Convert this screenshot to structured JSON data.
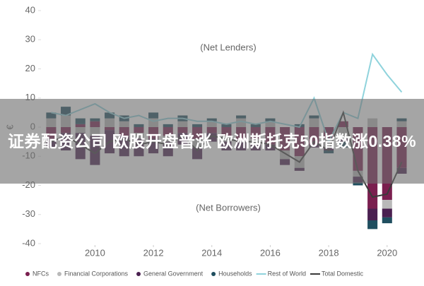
{
  "chart_data": {
    "type": "stacked_bar_line",
    "ylabel": "€",
    "annotations": [
      "(Net Lenders)",
      "(Net Borrowers)"
    ],
    "x": [
      2008.5,
      2009,
      2009.5,
      2010,
      2010.5,
      2011,
      2011.5,
      2012,
      2012.5,
      2013,
      2013.5,
      2014,
      2014.5,
      2015,
      2015.5,
      2016,
      2016.5,
      2017,
      2017.5,
      2018,
      2018.5,
      2019,
      2019.5,
      2020,
      2020.5
    ],
    "xlim": [
      2008.2,
      2020.9
    ],
    "xticks": [
      2010,
      2012,
      2014,
      2016,
      2018,
      2020
    ],
    "ylim": [
      -40,
      40
    ],
    "yticks": [
      -40,
      -30,
      -20,
      -10,
      0,
      10,
      20,
      30,
      40
    ],
    "series": [
      {
        "name": "NFCs",
        "kind": "bar",
        "color": "#7a1f4f",
        "values": [
          -4,
          -2,
          1,
          2,
          -1,
          -3,
          -2,
          -4,
          -3,
          -2,
          -4,
          -2,
          -3,
          -5,
          -4,
          -6,
          -8,
          -10,
          -6,
          -4,
          2,
          -15,
          -28,
          -25,
          -14
        ]
      },
      {
        "name": "Financial Corporations",
        "kind": "bar",
        "color": "#b9b9b9",
        "values": [
          3,
          4,
          -2,
          -3,
          3,
          2,
          -2,
          3,
          -2,
          2,
          -3,
          2,
          -2,
          3,
          -2,
          2,
          -3,
          -4,
          3,
          -3,
          -4,
          -2,
          3,
          -3,
          2
        ]
      },
      {
        "name": "General Government",
        "kind": "bar",
        "color": "#4a2050",
        "values": [
          -3,
          -6,
          -9,
          -10,
          -8,
          -7,
          -6,
          -5,
          -5,
          -4,
          -4,
          -3,
          -3,
          -3,
          -2,
          -2,
          -2,
          -1,
          -1,
          -1,
          -1,
          -2,
          -4,
          -3,
          -2
        ]
      },
      {
        "name": "Households",
        "kind": "bar",
        "color": "#1f4e5f",
        "values": [
          2,
          3,
          2,
          1,
          2,
          2,
          1,
          2,
          1,
          2,
          1,
          1,
          1,
          1,
          1,
          1,
          0,
          1,
          1,
          -1,
          -2,
          -1,
          -3,
          -2,
          1
        ]
      },
      {
        "name": "Rest of World",
        "kind": "line",
        "color": "#8fd3dc",
        "values": [
          5,
          4,
          6,
          8,
          5,
          3,
          4,
          2,
          3,
          3,
          2,
          2,
          1,
          2,
          1,
          2,
          1,
          0,
          10,
          -5,
          5,
          3,
          25,
          18,
          12
        ]
      },
      {
        "name": "Total Domestic",
        "kind": "line",
        "color": "#3a3a3a",
        "values": [
          -5,
          -3,
          -6,
          -9,
          -5,
          -4,
          -6,
          -5,
          -6,
          -3,
          -8,
          -3,
          -4,
          -5,
          -5,
          -6,
          -9,
          -12,
          -5,
          -8,
          5,
          -15,
          -24,
          -23,
          -12
        ]
      }
    ]
  },
  "banner": {
    "text": "证券配资公司 欧股开盘普涨 欧洲斯托克50指数涨0.38%"
  }
}
